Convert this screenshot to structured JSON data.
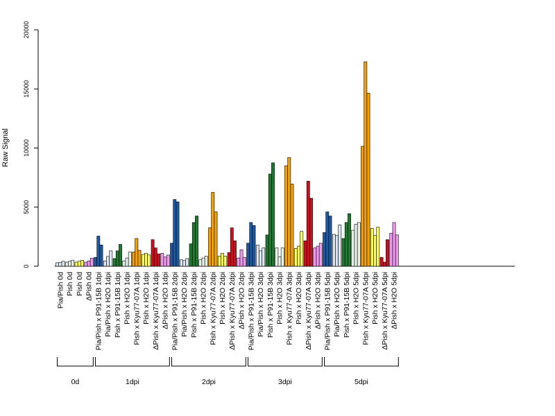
{
  "chart_data": {
    "type": "bar",
    "ylabel": "Raw Signal",
    "ylim": [
      0,
      20000
    ],
    "yticks": [
      0,
      5000,
      10000,
      15000,
      20000
    ],
    "bar_edge_color": "#000000",
    "categories": [
      {
        "label": "Pia/Pish 0d",
        "color": "#DCE6F1",
        "values": [
          300,
          320,
          420
        ]
      },
      {
        "label": "Pish 0d",
        "color": "#E8F3E8",
        "values": [
          350,
          420,
          500
        ]
      },
      {
        "label": "Pish 0d",
        "color": "#FFFF55",
        "values": [
          350,
          420,
          500
        ]
      },
      {
        "label": "ΔPish 0d",
        "color": "#EE99EE",
        "values": [
          350,
          450,
          680
        ]
      },
      {
        "label": "Pia/Pish x P91-15B 1dpi",
        "color": "#2058A0",
        "values": [
          750,
          2550,
          1800
        ]
      },
      {
        "label": "Pia/Pish x H2O 1dpi",
        "color": "#DCE6F1",
        "values": [
          450,
          830,
          1300
        ]
      },
      {
        "label": "Pish x P91-15B 1dpi",
        "color": "#1F7A30",
        "values": [
          650,
          1300,
          1850
        ]
      },
      {
        "label": "Pish x H2O 1dpi",
        "color": "#E8F3E8",
        "values": [
          450,
          700,
          1200
        ]
      },
      {
        "label": "Pish x Kyu77-07A 1dpi",
        "color": "#F5A000",
        "values": [
          1200,
          2350,
          1350
        ]
      },
      {
        "label": "Pish x H2O 1dpi",
        "color": "#FFFF55",
        "values": [
          1000,
          1100,
          950
        ]
      },
      {
        "label": "ΔPish x Kyu77-07A 1dpi",
        "color": "#CC1020",
        "values": [
          2250,
          1550,
          1050
        ]
      },
      {
        "label": "ΔPish x H2O 1dpi",
        "color": "#EE99EE",
        "values": [
          1100,
          780,
          950
        ]
      },
      {
        "label": "Pia/Pish x P91-15B 2dpi",
        "color": "#2058A0",
        "values": [
          1950,
          5650,
          5450
        ]
      },
      {
        "label": "Pia/Pish x H2O 2dpi",
        "color": "#DCE6F1",
        "values": [
          550,
          480,
          650
        ]
      },
      {
        "label": "Pish x P91-15B 2dpi",
        "color": "#1F7A30",
        "values": [
          1900,
          3700,
          4250
        ]
      },
      {
        "label": "Pish x H2O 2dpi",
        "color": "#E8F3E8",
        "values": [
          550,
          700,
          850
        ]
      },
      {
        "label": "Pish x Kyu77-07A 2dpi",
        "color": "#F5A000",
        "values": [
          3250,
          6250,
          4600
        ]
      },
      {
        "label": "Pish x H2O 2dpi",
        "color": "#FFFF55",
        "values": [
          850,
          1100,
          850
        ]
      },
      {
        "label": "ΔPish x Kyu77-07A 2dpi",
        "color": "#CC1020",
        "values": [
          1150,
          3250,
          2150
        ]
      },
      {
        "label": "ΔPish x H2O 2dpi",
        "color": "#EE99EE",
        "values": [
          700,
          1400,
          750
        ]
      },
      {
        "label": "Pia/Pish x P91-15B 3dpi",
        "color": "#2058A0",
        "values": [
          1950,
          3700,
          3450
        ]
      },
      {
        "label": "Pia/Pish x H2O 3dpi",
        "color": "#DCE6F1",
        "values": [
          1800,
          1300,
          1550
        ]
      },
      {
        "label": "Pish x P91-15B 3dpi",
        "color": "#1F7A30",
        "values": [
          2650,
          7800,
          8750
        ]
      },
      {
        "label": "Pish x H2O 3dpi",
        "color": "#E8F3E8",
        "values": [
          1550,
          800,
          1550
        ]
      },
      {
        "label": "Pish x Kyu77-07A 3dpi",
        "color": "#F5A000",
        "values": [
          8500,
          9200,
          6950
        ]
      },
      {
        "label": "Pish x H2O 3dpi",
        "color": "#FFFF55",
        "values": [
          1500,
          1700,
          2950
        ]
      },
      {
        "label": "ΔPish x Kyu77-07A 3dpi",
        "color": "#CC1020",
        "values": [
          2150,
          7200,
          5750
        ]
      },
      {
        "label": "ΔPish x H2O 3dpi",
        "color": "#EE99EE",
        "values": [
          1550,
          1700,
          1950
        ]
      },
      {
        "label": "Pia/Pish x P91-15B 5dpi",
        "color": "#2058A0",
        "values": [
          2850,
          4600,
          4250
        ]
      },
      {
        "label": "Pia/Pish x H2O 5dpi",
        "color": "#DCE6F1",
        "values": [
          2700,
          2600,
          3500
        ]
      },
      {
        "label": "Pish x P91-15B 5dpi",
        "color": "#1F7A30",
        "values": [
          2350,
          3700,
          4450
        ]
      },
      {
        "label": "Pish x H2O 5dpi",
        "color": "#E8F3E8",
        "values": [
          3050,
          3550,
          3700
        ]
      },
      {
        "label": "Pish x Kyu77-07A 5dpi",
        "color": "#F5A000",
        "values": [
          10150,
          17300,
          14650
        ]
      },
      {
        "label": "Pish x H2O 5dpi",
        "color": "#FFFF55",
        "values": [
          3200,
          2600,
          3300
        ]
      },
      {
        "label": "ΔPish x Kyu77-07A 5dpi",
        "color": "#CC1020",
        "values": [
          750,
          350,
          2250
        ]
      },
      {
        "label": "ΔPish x H2O 5dpi",
        "color": "#EE99EE",
        "values": [
          2800,
          3700,
          2650
        ]
      }
    ],
    "groups": [
      {
        "label": "0d",
        "first": 0,
        "last": 3
      },
      {
        "label": "1dpi",
        "first": 4,
        "last": 11
      },
      {
        "label": "2dpi",
        "first": 12,
        "last": 19
      },
      {
        "label": "3dpi",
        "first": 20,
        "last": 27
      },
      {
        "label": "5dpi",
        "first": 28,
        "last": 35
      }
    ]
  }
}
